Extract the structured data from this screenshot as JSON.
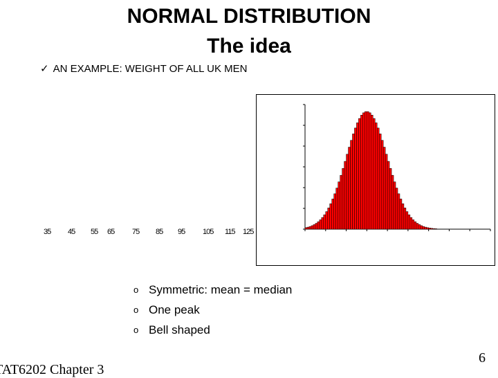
{
  "title": {
    "line1": "NORMAL DISTRIBUTION",
    "line2": "The idea"
  },
  "example": {
    "text": "AN EXAMPLE: WEIGHT OF ALL UK MEN",
    "icon": "check-icon"
  },
  "axis_labels": [
    "35",
    "45",
    "55",
    "65",
    "75",
    "85",
    "95",
    "105",
    "115",
    "125"
  ],
  "bullets": [
    "Symmetric: mean = median",
    "One peak",
    "Bell shaped"
  ],
  "footer": {
    "left_text": "TAT6202 Chapter 3",
    "page_number": "6"
  },
  "chart_data": {
    "type": "bar",
    "title": "",
    "xlabel": "",
    "ylabel": "",
    "bar_color": "#ff0000",
    "mean": 75,
    "sd": 15,
    "bin_start": 30,
    "bin_width": 1.5,
    "bin_count": 90,
    "ylim": [
      0,
      1
    ],
    "grid": false
  }
}
